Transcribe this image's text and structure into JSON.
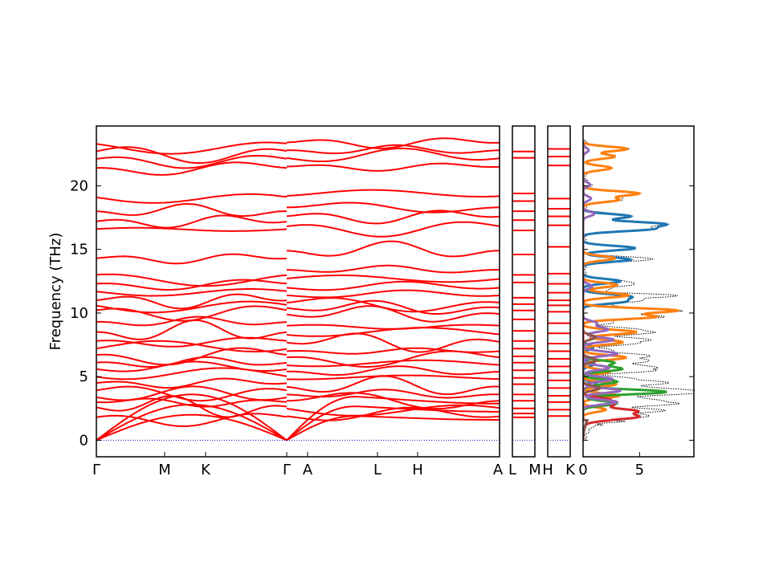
{
  "chart_data": {
    "type": "line",
    "ylabel": "Frequency (THz)",
    "ylim": [
      -1.3,
      24.7
    ],
    "yticks": [
      0,
      5,
      10,
      15,
      20
    ],
    "band_color": "#ff0000",
    "zero_line_color": "#0000cc",
    "panels": [
      {
        "kind": "bands",
        "x_labels": [
          "Γ",
          "M",
          "K",
          "Γ",
          "A",
          "L",
          "H",
          "A"
        ],
        "segments": [
          {
            "path": [
              "Γ",
              "M",
              "K",
              "Γ"
            ],
            "flat_levels": [
              1.8,
              2.6,
              3.0,
              3.4,
              3.9,
              4.5,
              5.0,
              5.6,
              6.1,
              6.7,
              7.2,
              7.8,
              8.5,
              9.3,
              10.2,
              10.6,
              11.0,
              11.7,
              12.3,
              13.0,
              14.3,
              16.6,
              17.2,
              18.0,
              19.1,
              21.4,
              22.1,
              22.7,
              23.3
            ],
            "acoustic_max": [
              2.0,
              2.8,
              3.6
            ]
          },
          {
            "path": [
              "A",
              "L",
              "H",
              "A"
            ],
            "flat_levels": [
              1.9,
              2.5,
              3.1,
              3.6,
              4.2,
              4.8,
              5.4,
              5.9,
              6.5,
              7.0,
              7.7,
              8.3,
              9.0,
              9.9,
              10.4,
              10.8,
              11.4,
              12.0,
              12.7,
              13.4,
              14.9,
              16.8,
              17.6,
              18.3,
              19.2,
              21.5,
              22.2,
              22.8,
              23.4
            ],
            "acoustic_max": [
              2.0,
              2.8,
              3.6
            ]
          }
        ]
      },
      {
        "kind": "bands",
        "x_labels": [
          "L",
          "M"
        ],
        "levels": [
          1.8,
          2.1,
          2.5,
          3.1,
          3.6,
          4.4,
          4.9,
          5.5,
          6.1,
          6.6,
          7.2,
          7.8,
          8.6,
          9.5,
          10.2,
          10.7,
          11.2,
          12.4,
          13.0,
          14.6,
          16.5,
          17.3,
          18.0,
          18.8,
          19.4,
          22.2,
          22.7
        ]
      },
      {
        "kind": "bands",
        "x_labels": [
          "H",
          "K"
        ],
        "levels": [
          1.9,
          2.4,
          3.0,
          3.5,
          4.1,
          4.7,
          5.3,
          5.8,
          6.4,
          7.0,
          7.6,
          8.4,
          9.2,
          10.1,
          10.6,
          11.0,
          11.6,
          12.3,
          13.1,
          15.2,
          16.9,
          17.6,
          18.2,
          19.0,
          21.6,
          22.3,
          22.9
        ]
      },
      {
        "kind": "dos",
        "x_labels": [
          "0",
          "5"
        ],
        "xlim": [
          0,
          9.8
        ],
        "total_color": "#000000",
        "partials": [
          {
            "color": "#1f77b4",
            "peaks": [
              [
                10.9,
                3.5
              ],
              [
                11.3,
                4.0
              ],
              [
                12.5,
                3.3
              ],
              [
                14.2,
                4.2
              ],
              [
                15.1,
                4.6
              ],
              [
                16.6,
                5.7
              ],
              [
                17.0,
                6.8
              ],
              [
                17.6,
                4.2
              ],
              [
                4.4,
                1.2
              ],
              [
                6.0,
                1.0
              ],
              [
                7.3,
                0.9
              ]
            ]
          },
          {
            "color": "#ff7f0e",
            "peaks": [
              [
                2.4,
                2.0
              ],
              [
                3.5,
                3.2
              ],
              [
                4.4,
                2.9
              ],
              [
                5.4,
                2.4
              ],
              [
                6.5,
                3.8
              ],
              [
                7.7,
                3.5
              ],
              [
                8.5,
                4.7
              ],
              [
                9.7,
                6.3
              ],
              [
                10.2,
                8.2
              ],
              [
                11.4,
                4.0
              ],
              [
                12.2,
                3.0
              ],
              [
                14.3,
                2.8
              ],
              [
                18.9,
                3.1
              ],
              [
                19.4,
                4.9
              ],
              [
                21.4,
                2.5
              ],
              [
                22.3,
                2.8
              ],
              [
                22.9,
                3.9
              ]
            ]
          },
          {
            "color": "#2ca02c",
            "peaks": [
              [
                3.8,
                7.4
              ],
              [
                5.6,
                3.4
              ],
              [
                6.1,
                2.7
              ],
              [
                4.6,
                3.0
              ],
              [
                2.9,
                3.0
              ]
            ]
          },
          {
            "color": "#d62728",
            "peaks": [
              [
                1.9,
                3.5
              ],
              [
                2.3,
                4.5
              ],
              [
                2.8,
                2.5
              ],
              [
                3.2,
                2.2
              ],
              [
                1.7,
                2.0
              ]
            ]
          },
          {
            "color": "#9467bd",
            "peaks": [
              [
                3.0,
                3.0
              ],
              [
                3.9,
                3.3
              ],
              [
                4.8,
                2.6
              ],
              [
                5.7,
                2.3
              ],
              [
                6.8,
                3.0
              ],
              [
                7.9,
                2.7
              ],
              [
                8.7,
                2.2
              ],
              [
                9.2,
                1.2
              ],
              [
                12.1,
                0.8
              ],
              [
                17.8,
                1.0
              ],
              [
                19.0,
                0.7
              ],
              [
                20.1,
                0.6
              ],
              [
                22.8,
                0.5
              ]
            ]
          },
          {
            "color": "#8c564b",
            "peaks": [
              [
                4.1,
                1.5
              ],
              [
                6.3,
                1.2
              ],
              [
                8.1,
                1.1
              ]
            ]
          }
        ]
      }
    ]
  }
}
